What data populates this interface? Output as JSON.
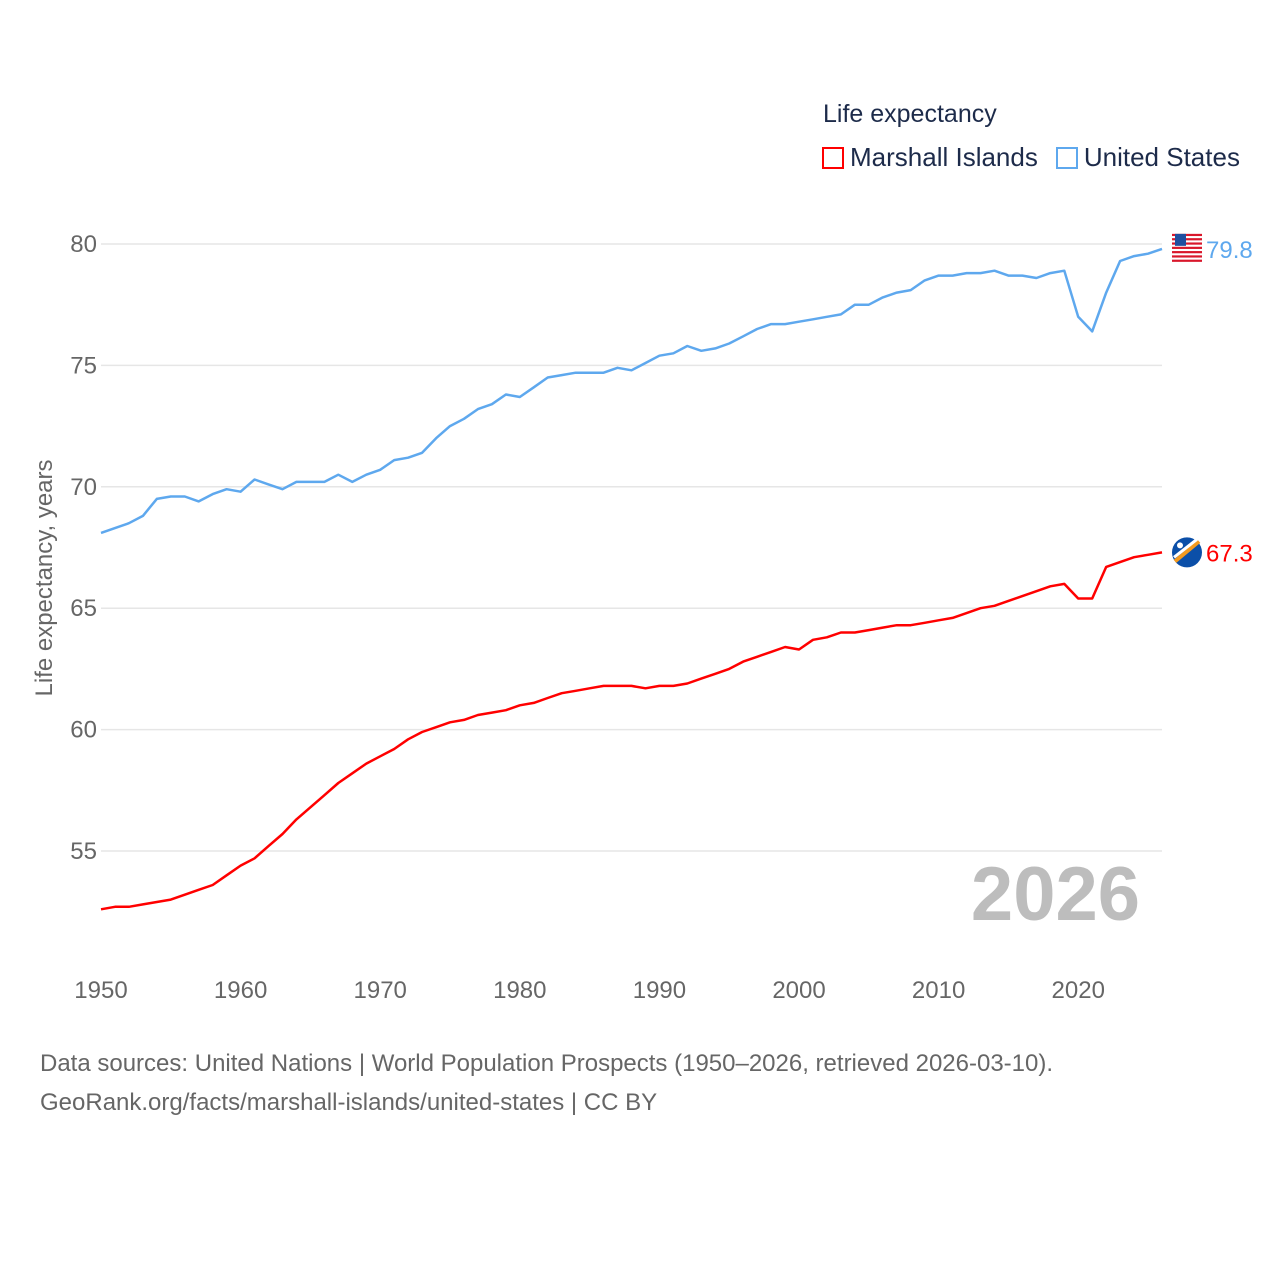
{
  "chart_data": {
    "type": "line",
    "title": "",
    "legend_title": "Life expectancy",
    "legend_position": "top-right",
    "ylabel": "Life expectancy, years",
    "xlabel": "",
    "xlim": [
      1950,
      2026
    ],
    "ylim": [
      52,
      80
    ],
    "x_ticks": [
      "1950",
      "1960",
      "1970",
      "1980",
      "1990",
      "2000",
      "2010",
      "2020"
    ],
    "y_ticks": [
      "55",
      "60",
      "65",
      "70",
      "75",
      "80"
    ],
    "grid": true,
    "watermark_year": "2026",
    "x": [
      1950,
      1951,
      1952,
      1953,
      1954,
      1955,
      1956,
      1957,
      1958,
      1959,
      1960,
      1961,
      1962,
      1963,
      1964,
      1965,
      1966,
      1967,
      1968,
      1969,
      1970,
      1971,
      1972,
      1973,
      1974,
      1975,
      1976,
      1977,
      1978,
      1979,
      1980,
      1981,
      1982,
      1983,
      1984,
      1985,
      1986,
      1987,
      1988,
      1989,
      1990,
      1991,
      1992,
      1993,
      1994,
      1995,
      1996,
      1997,
      1998,
      1999,
      2000,
      2001,
      2002,
      2003,
      2004,
      2005,
      2006,
      2007,
      2008,
      2009,
      2010,
      2011,
      2012,
      2013,
      2014,
      2015,
      2016,
      2017,
      2018,
      2019,
      2020,
      2021,
      2022,
      2023,
      2024,
      2025,
      2026
    ],
    "series": [
      {
        "name": "Marshall Islands",
        "color": "#ff0000",
        "end_label": "67.3",
        "values": [
          52.6,
          52.7,
          52.7,
          52.8,
          52.9,
          53.0,
          53.2,
          53.4,
          53.6,
          54.0,
          54.4,
          54.7,
          55.2,
          55.7,
          56.3,
          56.8,
          57.3,
          57.8,
          58.2,
          58.6,
          58.9,
          59.2,
          59.6,
          59.9,
          60.1,
          60.3,
          60.4,
          60.6,
          60.7,
          60.8,
          61.0,
          61.1,
          61.3,
          61.5,
          61.6,
          61.7,
          61.8,
          61.8,
          61.8,
          61.7,
          61.8,
          61.8,
          61.9,
          62.1,
          62.3,
          62.5,
          62.8,
          63.0,
          63.2,
          63.4,
          63.3,
          63.7,
          63.8,
          64.0,
          64.0,
          64.1,
          64.2,
          64.3,
          64.3,
          64.4,
          64.5,
          64.6,
          64.8,
          65.0,
          65.1,
          65.3,
          65.5,
          65.7,
          65.9,
          66.0,
          65.4,
          65.4,
          66.7,
          66.9,
          67.1,
          67.2,
          67.3
        ]
      },
      {
        "name": "United States",
        "color": "#5ea8ee",
        "end_label": "79.8",
        "values": [
          68.1,
          68.3,
          68.5,
          68.8,
          69.5,
          69.6,
          69.6,
          69.4,
          69.7,
          69.9,
          69.8,
          70.3,
          70.1,
          69.9,
          70.2,
          70.2,
          70.2,
          70.5,
          70.2,
          70.5,
          70.7,
          71.1,
          71.2,
          71.4,
          72.0,
          72.5,
          72.8,
          73.2,
          73.4,
          73.8,
          73.7,
          74.1,
          74.5,
          74.6,
          74.7,
          74.7,
          74.7,
          74.9,
          74.8,
          75.1,
          75.4,
          75.5,
          75.8,
          75.6,
          75.7,
          75.9,
          76.2,
          76.5,
          76.7,
          76.7,
          76.8,
          76.9,
          77.0,
          77.1,
          77.5,
          77.5,
          77.8,
          78.0,
          78.1,
          78.5,
          78.7,
          78.7,
          78.8,
          78.8,
          78.9,
          78.7,
          78.7,
          78.6,
          78.8,
          78.9,
          77.0,
          76.4,
          78.0,
          79.3,
          79.5,
          79.6,
          79.8
        ]
      }
    ]
  },
  "footer": {
    "line1": "Data sources: United Nations | World Population Prospects (1950–2026, retrieved 2026-03-10).",
    "line2": "GeoRank.org/facts/marshall-islands/united-states | CC BY"
  }
}
